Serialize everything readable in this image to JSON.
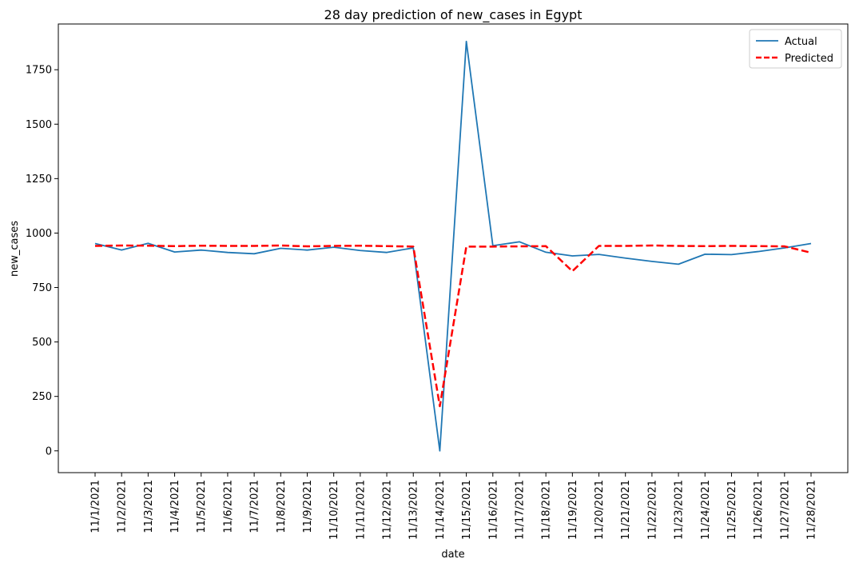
{
  "chart_data": {
    "type": "line",
    "title": "28 day prediction of new_cases in Egypt",
    "xlabel": "date",
    "ylabel": "new_cases",
    "categories": [
      "11/1/2021",
      "11/2/2021",
      "11/3/2021",
      "11/4/2021",
      "11/5/2021",
      "11/6/2021",
      "11/7/2021",
      "11/8/2021",
      "11/9/2021",
      "11/10/2021",
      "11/11/2021",
      "11/12/2021",
      "11/13/2021",
      "11/14/2021",
      "11/15/2021",
      "11/16/2021",
      "11/17/2021",
      "11/18/2021",
      "11/19/2021",
      "11/20/2021",
      "11/21/2021",
      "11/22/2021",
      "11/23/2021",
      "11/24/2021",
      "11/25/2021",
      "11/26/2021",
      "11/27/2021",
      "11/28/2021"
    ],
    "ylim": [
      -100,
      1960
    ],
    "yticks": [
      0,
      250,
      500,
      750,
      1000,
      1250,
      1500,
      1750
    ],
    "legend_position": "top-right",
    "grid": false,
    "series": [
      {
        "name": "Actual",
        "color": "#1f77b4",
        "style": "solid",
        "values": [
          952,
          922,
          953,
          913,
          922,
          911,
          905,
          930,
          922,
          935,
          920,
          911,
          932,
          0,
          1880,
          942,
          960,
          912,
          895,
          902,
          885,
          870,
          857,
          903,
          901,
          915,
          932,
          952
        ]
      },
      {
        "name": "Predicted",
        "color": "#ff0000",
        "style": "dashed",
        "values": [
          941,
          943,
          942,
          940,
          942,
          941,
          941,
          943,
          939,
          941,
          942,
          940,
          938,
          205,
          938,
          938,
          939,
          940,
          825,
          941,
          941,
          943,
          941,
          940,
          941,
          940,
          939,
          910
        ]
      }
    ]
  }
}
